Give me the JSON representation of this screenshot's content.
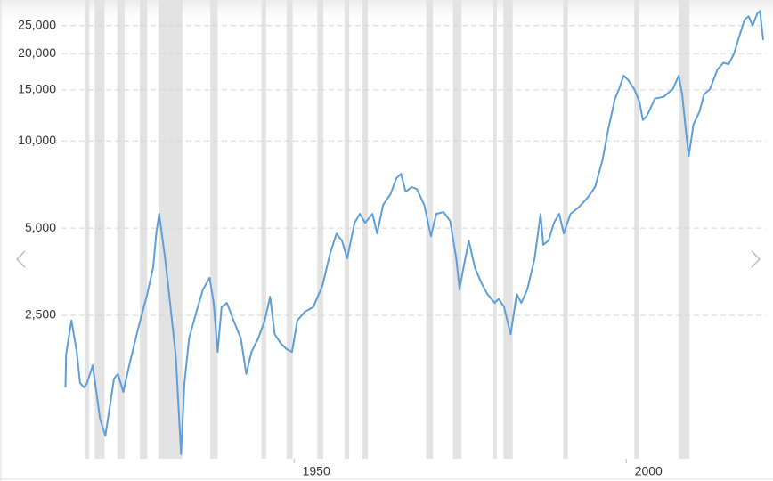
{
  "chart_data": {
    "type": "line",
    "log_scale": true,
    "grid": true,
    "x": [
      1915.6,
      1915.7,
      1916.5,
      1917.3,
      1917.8,
      1918.4,
      1918.8,
      1919.7,
      1920.8,
      1921.6,
      1922.9,
      1923.5,
      1924.3,
      1925.2,
      1926.5,
      1927.9,
      1928.8,
      1929.3,
      1929.7,
      1930.6,
      1931.2,
      1932.2,
      1933.0,
      1933.5,
      1934.2,
      1935.3,
      1936.3,
      1937.3,
      1937.9,
      1938.5,
      1939.1,
      1939.9,
      1940.9,
      1942.0,
      1942.8,
      1943.6,
      1944.6,
      1945.6,
      1946.4,
      1947.1,
      1948.0,
      1948.9,
      1949.7,
      1950.5,
      1951.6,
      1952.9,
      1954.3,
      1955.4,
      1956.4,
      1957.2,
      1958.0,
      1959.1,
      1959.9,
      1960.7,
      1961.8,
      1962.5,
      1963.4,
      1964.5,
      1965.4,
      1966.1,
      1966.8,
      1967.7,
      1968.5,
      1969.6,
      1970.6,
      1971.4,
      1972.5,
      1973.5,
      1974.4,
      1974.9,
      1975.5,
      1976.3,
      1977.2,
      1978.2,
      1979.1,
      1980.2,
      1980.8,
      1981.6,
      1982.6,
      1983.5,
      1984.2,
      1985.1,
      1986.2,
      1987.1,
      1987.5,
      1988.3,
      1989.1,
      1989.9,
      1990.6,
      1991.6,
      1992.9,
      1994.2,
      1995.3,
      1996.4,
      1997.3,
      1998.3,
      1998.9,
      1999.6,
      2000.3,
      2001.2,
      2002.0,
      2002.5,
      2003.1,
      2004.3,
      2005.6,
      2007.0,
      2007.9,
      2008.4,
      2009.0,
      2009.4,
      2010.1,
      2011.0,
      2011.7,
      2012.6,
      2013.7,
      2014.6,
      2015.4,
      2016.2,
      2017.0,
      2017.8,
      2018.4,
      2019.0,
      2019.7,
      2020.1,
      2020.6
    ],
    "series": [
      {
        "color": "#5e9fd8",
        "values": [
          1410,
          1830,
          2400,
          1870,
          1460,
          1410,
          1450,
          1680,
          1100,
          960,
          1510,
          1570,
          1360,
          1680,
          2230,
          2960,
          3660,
          4860,
          5600,
          3930,
          2960,
          1810,
          830,
          1460,
          2080,
          2570,
          3070,
          3370,
          2760,
          1870,
          2670,
          2760,
          2400,
          2080,
          1570,
          1870,
          2080,
          2400,
          2900,
          2150,
          2000,
          1910,
          1870,
          2400,
          2570,
          2670,
          3180,
          4070,
          4790,
          4530,
          3930,
          5210,
          5600,
          5210,
          5600,
          4790,
          6010,
          6540,
          7430,
          7700,
          6680,
          6930,
          6820,
          6010,
          4690,
          5600,
          5680,
          5290,
          3930,
          3070,
          3660,
          4530,
          3660,
          3230,
          2960,
          2760,
          2850,
          2670,
          2150,
          2960,
          2760,
          3070,
          3930,
          5600,
          4380,
          4530,
          5210,
          5600,
          4790,
          5600,
          5920,
          6380,
          6930,
          8560,
          11000,
          14000,
          15100,
          16800,
          16200,
          15100,
          13600,
          11800,
          12200,
          14000,
          14200,
          15100,
          16800,
          14500,
          10600,
          8870,
          11400,
          12600,
          14500,
          15100,
          17600,
          18600,
          18400,
          20000,
          23000,
          26200,
          26900,
          25000,
          27500,
          28100,
          22300
        ]
      }
    ],
    "recessions": [
      [
        1918.6,
        1919.2
      ],
      [
        1920.0,
        1921.5
      ],
      [
        1923.4,
        1924.5
      ],
      [
        1926.8,
        1927.9
      ],
      [
        1929.6,
        1933.2
      ],
      [
        1937.4,
        1938.5
      ],
      [
        1945.1,
        1945.8
      ],
      [
        1948.9,
        1949.8
      ],
      [
        1953.5,
        1954.4
      ],
      [
        1957.6,
        1958.3
      ],
      [
        1960.3,
        1961.1
      ],
      [
        1969.9,
        1970.9
      ],
      [
        1973.9,
        1975.2
      ],
      [
        1980.0,
        1980.5
      ],
      [
        1981.5,
        1982.9
      ],
      [
        1990.5,
        1991.2
      ],
      [
        2001.2,
        2001.9
      ],
      [
        2007.9,
        2009.5
      ]
    ],
    "recession_color": "#e3e3e3",
    "xlim": [
      1915,
      2021
    ],
    "xticks": [
      1950,
      2000
    ],
    "ylim": [
      800,
      30000
    ],
    "yticks": [
      {
        "value": 2500,
        "label": "2,500"
      },
      {
        "value": 5000,
        "label": "5,000"
      },
      {
        "value": 10000,
        "label": "10,000"
      },
      {
        "value": 15000,
        "label": "15,000"
      },
      {
        "value": 20000,
        "label": "20,000"
      },
      {
        "value": 25000,
        "label": "25,000"
      }
    ]
  }
}
